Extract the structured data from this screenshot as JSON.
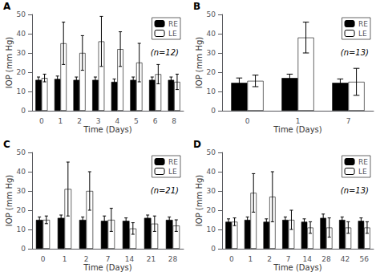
{
  "chart_data": [
    {
      "type": "bar",
      "title": "A",
      "annotations": [
        "(n=12)"
      ],
      "categories": [
        "0",
        "1",
        "2",
        "3",
        "4",
        "5",
        "6",
        "8"
      ],
      "series": [
        {
          "name": "RE",
          "color": "#000000",
          "values": [
            16,
            16.5,
            16,
            16,
            15,
            16,
            16,
            16
          ],
          "yerr": [
            1.5,
            1.5,
            1.5,
            1.5,
            1.5,
            1.5,
            1.5,
            1.5
          ]
        },
        {
          "name": "LE",
          "color": "#ffffff",
          "values": [
            17,
            35,
            30,
            36,
            32,
            25,
            19,
            15
          ],
          "yerr": [
            2,
            11,
            9,
            13,
            9,
            10,
            5,
            4
          ]
        }
      ],
      "xlabel": "Time (Days)",
      "ylabel": "IOP (mm Hg)",
      "ylim": [
        0,
        50
      ],
      "yticks": [
        0,
        10,
        20,
        30,
        40,
        50
      ],
      "grid": false,
      "legend": "upper right"
    },
    {
      "type": "bar",
      "title": "B",
      "annotations": [
        "(n=13)"
      ],
      "categories": [
        "0",
        "1",
        "7"
      ],
      "series": [
        {
          "name": "RE",
          "color": "#000000",
          "values": [
            14.5,
            17,
            14.5
          ],
          "yerr": [
            2.5,
            2,
            2
          ]
        },
        {
          "name": "LE",
          "color": "#ffffff",
          "values": [
            15.5,
            38,
            15
          ],
          "yerr": [
            3,
            8,
            7
          ]
        }
      ],
      "xlabel": "Time (Days)",
      "ylabel": "IOP (mm Hg)",
      "ylim": [
        0,
        50
      ],
      "yticks": [
        0,
        10,
        20,
        30,
        40,
        50
      ],
      "grid": false,
      "legend": "upper right"
    },
    {
      "type": "bar",
      "title": "C",
      "annotations": [
        "(n=21)"
      ],
      "categories": [
        "0",
        "1",
        "2",
        "7",
        "14",
        "21",
        "28"
      ],
      "series": [
        {
          "name": "RE",
          "color": "#000000",
          "values": [
            15,
            16,
            15,
            14.5,
            14.5,
            16,
            15
          ],
          "yerr": [
            1.5,
            1.5,
            1.5,
            2.5,
            1.5,
            1.5,
            1.5
          ]
        },
        {
          "name": "LE",
          "color": "#ffffff",
          "values": [
            15,
            31,
            30,
            15,
            10.5,
            13,
            12
          ],
          "yerr": [
            2,
            14,
            10,
            6,
            3,
            4,
            3
          ]
        }
      ],
      "xlabel": "Time (Days)",
      "ylabel": "IOP (mm Hg)",
      "ylim": [
        0,
        50
      ],
      "yticks": [
        0,
        10,
        20,
        30,
        40,
        50
      ],
      "grid": false,
      "legend": "upper right"
    },
    {
      "type": "bar",
      "title": "D",
      "annotations": [
        "(n=13)"
      ],
      "categories": [
        "0",
        "1",
        "2",
        "7",
        "14",
        "28",
        "42",
        "56"
      ],
      "series": [
        {
          "name": "RE",
          "color": "#000000",
          "values": [
            14,
            15,
            14,
            15,
            14,
            16,
            15,
            14.5
          ],
          "yerr": [
            1.5,
            1.5,
            1.5,
            1.5,
            1.5,
            2,
            1.5,
            1.5
          ]
        },
        {
          "name": "LE",
          "color": "#ffffff",
          "values": [
            14,
            29,
            27,
            15,
            11,
            11,
            11,
            11
          ],
          "yerr": [
            2,
            10,
            13,
            5,
            3,
            5,
            3,
            3
          ]
        }
      ],
      "xlabel": "Time (Days)",
      "ylabel": "IOP (mm Hg)",
      "ylim": [
        0,
        50
      ],
      "yticks": [
        0,
        10,
        20,
        30,
        40,
        50
      ],
      "grid": false,
      "legend": "upper right"
    }
  ]
}
